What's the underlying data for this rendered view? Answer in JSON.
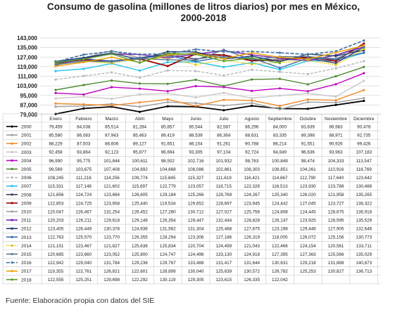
{
  "chart_data": {
    "type": "line",
    "title": "Consumo de gasolina (millones de litros diarios) por mes en México, 2000-2018",
    "title_lines": [
      "Consumo de gasolina (millones de litros diarios) por mes en México,",
      "2000-2018"
    ],
    "ylim": [
      79000,
      143000
    ],
    "yticks": [
      79000,
      87000,
      95000,
      103000,
      111000,
      119000,
      127000,
      135000,
      143000
    ],
    "ytick_labels": [
      "79,000",
      "87,000",
      "95,000",
      "103,000",
      "111,000",
      "119,000",
      "127,000",
      "135,000",
      "143,000"
    ],
    "grid": true,
    "categories": [
      "Enero",
      "Febrero",
      "Marzo",
      "Abril",
      "Mayo",
      "Junio",
      "Julio",
      "Agosto",
      "Septiembre",
      "Octubre",
      "Noviembre",
      "Diciembre"
    ],
    "series": [
      {
        "name": "2000",
        "color": "#000000",
        "values": [
          79459,
          84038,
          85514,
          81284,
          85857,
          85544,
          82587,
          86296,
          84000,
          83839,
          86983,
          90478
        ]
      },
      {
        "name": "2001",
        "color": "#a0a0a0",
        "values": [
          85580,
          86083,
          87943,
          85463,
          89419,
          88539,
          86364,
          88631,
          83335,
          89398,
          88971,
          92735
        ]
      },
      {
        "name": "2002",
        "color": "#f08a2a",
        "values": [
          88229,
          87503,
          86606,
          89127,
          91651,
          86104,
          91261,
          90788,
          86214,
          91551,
          90926,
          99426
        ]
      },
      {
        "name": "2003",
        "color": "#c8c8c8",
        "values": [
          92458,
          93864,
          92123,
          95877,
          96694,
          93305,
          97104,
          92724,
          94849,
          96636,
          93963,
          107183
        ]
      },
      {
        "name": "2004",
        "color": "#c000c0",
        "values": [
          96990,
          95775,
          101844,
          100611,
          98502,
          102716,
          101932,
          98763,
          100849,
          98474,
          104333,
          113547
        ]
      },
      {
        "name": "2005",
        "color": "#4e8a30",
        "values": [
          99569,
          103675,
          107408,
          104892,
          104668,
          108086,
          102861,
          108303,
          108851,
          104261,
          110916,
          118769
        ]
      },
      {
        "name": "2006",
        "color": "#b8b8b8",
        "values": [
          108245,
          111216,
          114256,
          109774,
          115845,
          115327,
          111619,
          116421,
          114667,
          112790,
          117640,
          123642
        ]
      },
      {
        "name": "2007",
        "color": "#25c4ee",
        "values": [
          115331,
          117148,
          121602,
          115697,
          122779,
          123057,
          118715,
          122328,
          116513,
          123930,
          123788,
          130488
        ]
      },
      {
        "name": "2008",
        "color": "#3b3b5c",
        "values": [
          121656,
          124724,
          123664,
          126605,
          129184,
          125266,
          128769,
          124267,
          125340,
          126020,
          121958,
          135265
        ]
      },
      {
        "name": "2009",
        "color": "#a00000",
        "values": [
          122853,
          124725,
          123658,
          125440,
          119534,
          129652,
          128697,
          123945,
          124442,
          127045,
          123727,
          138322
        ]
      },
      {
        "name": "2010",
        "color": "#9aa0a0",
        "values": [
          120047,
          126467,
          132254,
          126452,
          127280,
          130712,
          127027,
          125756,
          124808,
          124445,
          128675,
          136918
        ]
      },
      {
        "name": "2011",
        "color": "#7a20b0",
        "values": [
          120203,
          126211,
          129618,
          129146,
          126354,
          129447,
          132444,
          128828,
          126147,
          123925,
          128595,
          135529
        ]
      },
      {
        "name": "2012",
        "color": "#1c3d6e",
        "values": [
          123405,
          126449,
          130378,
          124936,
          131562,
          131304,
          125468,
          127875,
          123198,
          129446,
          127905,
          132646
        ]
      },
      {
        "name": "2013",
        "color": "#3a6ab0",
        "values": [
          122763,
          125570,
          123770,
          126355,
          128294,
          123306,
          127186,
          126319,
          118005,
          126072,
          125156,
          130773
        ]
      },
      {
        "name": "2014",
        "color": "#e0c000",
        "values": [
          121151,
          123467,
          121827,
          125638,
          125834,
          120704,
          124499,
          121043,
          122466,
          124154,
          120561,
          133711
        ]
      },
      {
        "name": "2015",
        "color": "#5a7890",
        "values": [
          120685,
          123660,
          123052,
          125800,
          124747,
          124496,
          133130,
          124918,
          127395,
          127363,
          125566,
          135029
        ]
      },
      {
        "name": "2016",
        "color": "#4a7aa8",
        "values": [
          122942,
          129040,
          131784,
          129236,
          129767,
          133488,
          131417,
          131644,
          130631,
          129218,
          131888,
          140873
        ]
      },
      {
        "name": "2017",
        "color": "#f0a000",
        "values": [
          119355,
          122761,
          126821,
          122601,
          128899,
          130040,
          125639,
          130572,
          126782,
          125253,
          130827,
          136713
        ]
      },
      {
        "name": "2018",
        "color": "#5aa02c",
        "values": [
          122555,
          125251,
          129698,
          122292,
          130119,
          129305,
          123615,
          126335,
          122042,
          null,
          null,
          null
        ]
      }
    ],
    "table_rows_display": [
      [
        "79,459",
        "84,038",
        "85,514",
        "81,284",
        "85,857",
        "85,544",
        "82,587",
        "86,296",
        "84,000",
        "83,839",
        "86,983",
        "90,478"
      ],
      [
        "85,580",
        "86,083",
        "87,943",
        "85,463",
        "89,419",
        "88,539",
        "86,364",
        "88,631",
        "83,335",
        "89,398",
        "88,971",
        "92,735"
      ],
      [
        "88,229",
        "87,503",
        "86,606",
        "89,127",
        "91,651",
        "86,104",
        "91,261",
        "90,788",
        "86,214",
        "91,551",
        "90,926",
        "99,426"
      ],
      [
        "92,458",
        "93,864",
        "92,123",
        "95,877",
        "96,694",
        "93,305",
        "97,104",
        "92,724",
        "94,849",
        "96,636",
        "93,963",
        "107,183"
      ],
      [
        "96,990",
        "95,775",
        "101,844",
        "100,611",
        "98,502",
        "102,716",
        "101,932",
        "98,763",
        "100,849",
        "98,474",
        "104,333",
        "113,547"
      ],
      [
        "99,569",
        "103,675",
        "107,408",
        "104,892",
        "104,668",
        "108,086",
        "102,861",
        "108,303",
        "108,851",
        "104,261",
        "110,916",
        "118,769"
      ],
      [
        "108,245",
        "111,216",
        "114,256",
        "109,774",
        "115,845",
        "115,327",
        "111,619",
        "116,421",
        "114,667",
        "112,790",
        "117,640",
        "123,642"
      ],
      [
        "115,331",
        "117,148",
        "121,602",
        "115,697",
        "122,779",
        "123,057",
        "118,715",
        "122,328",
        "116,513",
        "123,930",
        "123,788",
        "130,488"
      ],
      [
        "121,656",
        "124,724",
        "123,664",
        "126,605",
        "129,184",
        "125,266",
        "128,769",
        "124,267",
        "125,340",
        "126,020",
        "121,958",
        "135,265"
      ],
      [
        "122,853",
        "124,725",
        "123,658",
        "125,440",
        "119,534",
        "129,652",
        "128,697",
        "123,945",
        "124,442",
        "127,045",
        "123,727",
        "138,322"
      ],
      [
        "120,047",
        "126,467",
        "132,254",
        "126,452",
        "127,280",
        "130,712",
        "127,027",
        "125,756",
        "124,808",
        "124,445",
        "128,675",
        "136,918"
      ],
      [
        "120,203",
        "126,211",
        "129,618",
        "129,146",
        "126,354",
        "129,447",
        "132,444",
        "128,828",
        "126,147",
        "123,925",
        "128,595",
        "135,529"
      ],
      [
        "123,405",
        "126,449",
        "130,378",
        "124,936",
        "131,562",
        "131,304",
        "125,468",
        "127,875",
        "123,198",
        "129,446",
        "127,905",
        "132,646"
      ],
      [
        "122,763",
        "125,570",
        "123,770",
        "126,355",
        "128,294",
        "123,306",
        "127,186",
        "126,319",
        "118,005",
        "126,072",
        "125,156",
        "130,773"
      ],
      [
        "121,151",
        "123,467",
        "121,827",
        "125,638",
        "125,834",
        "120,704",
        "124,499",
        "121,043",
        "122,466",
        "124,154",
        "120,561",
        "133,711"
      ],
      [
        "120,685",
        "123,660",
        "123,052",
        "125,800",
        "124,747",
        "124,496",
        "133,130",
        "124,918",
        "127,395",
        "127,363",
        "125,566",
        "135,029"
      ],
      [
        "122,942",
        "129,040",
        "131,784",
        "129,236",
        "129,767",
        "133,488",
        "131,417",
        "131,644",
        "130,631",
        "129,218",
        "131,888",
        "140,873"
      ],
      [
        "119,355",
        "122,761",
        "126,821",
        "122,601",
        "128,899",
        "130,040",
        "125,639",
        "130,572",
        "126,782",
        "125,253",
        "130,827",
        "136,713"
      ],
      [
        "122,555",
        "125,251",
        "129,698",
        "122,292",
        "130,119",
        "129,305",
        "123,615",
        "126,335",
        "122,042",
        "",
        "",
        ""
      ]
    ]
  },
  "footer": {
    "source": "Fuente: Elaboración propia con datos del SIE"
  }
}
